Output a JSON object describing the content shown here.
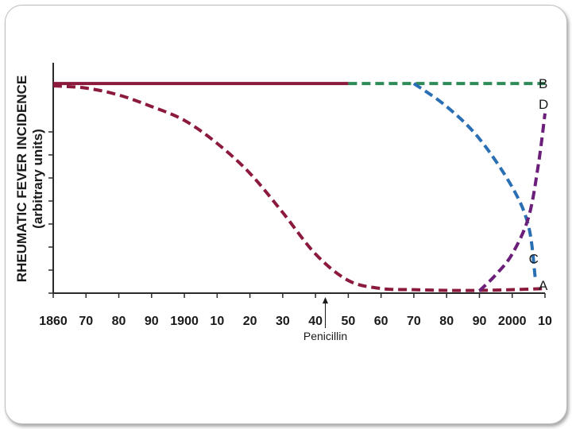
{
  "chart_data": {
    "type": "line",
    "title": "",
    "xlabel": "",
    "ylabel_line1": "RHEUMATIC FEVER INCIDENCE",
    "ylabel_line2": "(arbitrary units)",
    "x_tick_labels": [
      "1860",
      "70",
      "80",
      "90",
      "1900",
      "10",
      "20",
      "30",
      "40",
      "50",
      "60",
      "70",
      "80",
      "90",
      "2000",
      "10"
    ],
    "x_tick_years": [
      1860,
      1870,
      1880,
      1890,
      1900,
      1910,
      1920,
      1930,
      1940,
      1950,
      1960,
      1970,
      1980,
      1990,
      2000,
      2010
    ],
    "xlim": [
      1860,
      2010
    ],
    "ylim": [
      0,
      10
    ],
    "y_tick_values": [
      0,
      1,
      2,
      3,
      4,
      5,
      6,
      7
    ],
    "series": [
      {
        "name": "A",
        "color": "#8b1a3c",
        "dash": true,
        "points": [
          [
            1860,
            9.0
          ],
          [
            1870,
            8.9
          ],
          [
            1880,
            8.6
          ],
          [
            1890,
            8.1
          ],
          [
            1900,
            7.5
          ],
          [
            1910,
            6.5
          ],
          [
            1920,
            5.2
          ],
          [
            1930,
            3.5
          ],
          [
            1940,
            1.7
          ],
          [
            1950,
            0.55
          ],
          [
            1960,
            0.2
          ],
          [
            1970,
            0.15
          ],
          [
            1980,
            0.12
          ],
          [
            1990,
            0.12
          ],
          [
            2000,
            0.15
          ],
          [
            2010,
            0.2
          ]
        ]
      },
      {
        "name": "B",
        "color": "#8b1a3c",
        "dash": false,
        "points": [
          [
            1860,
            9.1
          ],
          [
            1950,
            9.1
          ]
        ]
      },
      {
        "name": "B",
        "color": "#2e8b57",
        "dash": true,
        "points": [
          [
            1950,
            9.1
          ],
          [
            2010,
            9.1
          ]
        ]
      },
      {
        "name": "C",
        "color": "#2a6fb3",
        "dash": true,
        "points": [
          [
            1970,
            9.1
          ],
          [
            1980,
            8.1
          ],
          [
            1990,
            6.7
          ],
          [
            2000,
            4.6
          ],
          [
            2005,
            2.9
          ],
          [
            2007,
            0.7
          ]
        ]
      },
      {
        "name": "D",
        "color": "#6b1f7a",
        "dash": true,
        "points": [
          [
            1990,
            0.1
          ],
          [
            1995,
            0.8
          ],
          [
            2000,
            1.7
          ],
          [
            2005,
            3.3
          ],
          [
            2008,
            5.6
          ],
          [
            2010,
            7.8
          ]
        ]
      }
    ],
    "labels": [
      {
        "text": "B",
        "x": 2010,
        "y": 9.1
      },
      {
        "text": "D",
        "x": 2010,
        "y": 8.2
      },
      {
        "text": "C",
        "x": 2007,
        "y": 1.5
      },
      {
        "text": "A",
        "x": 2010,
        "y": 0.35
      }
    ],
    "annotation": {
      "text": "Penicillin",
      "x": 1943
    }
  }
}
